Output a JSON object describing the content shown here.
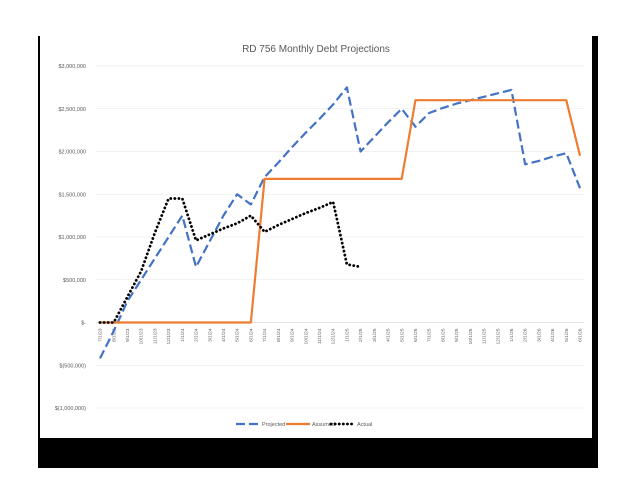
{
  "chart_data": {
    "type": "line",
    "title": "RD 756 Monthly Debt Projections",
    "xlabel": "",
    "ylabel": "",
    "ylim": [
      -1000000,
      3000000
    ],
    "yticks": [
      3000000,
      2500000,
      2000000,
      1500000,
      1000000,
      500000,
      0,
      -500000,
      -1000000
    ],
    "ytick_labels": [
      "$3,000,000",
      "$2,500,000",
      "$2,000,000",
      "$1,500,000",
      "$1,000,000",
      "$500,000",
      "$-",
      "$(500,000)",
      "$(1,000,000)"
    ],
    "grid": true,
    "legend_position": "bottom",
    "categories": [
      "7/1/23",
      "8/1/23",
      "9/1/23",
      "10/1/23",
      "11/1/23",
      "12/1/23",
      "1/1/24",
      "2/1/24",
      "3/1/24",
      "4/1/24",
      "5/1/24",
      "6/1/24",
      "7/1/24",
      "8/1/24",
      "9/1/24",
      "10/1/24",
      "11/1/24",
      "12/1/24",
      "1/1/25",
      "2/1/25",
      "3/1/25",
      "4/1/25",
      "5/1/25",
      "6/1/25",
      "7/1/25",
      "8/1/25",
      "9/1/25",
      "10/1/25",
      "11/1/25",
      "12/1/25",
      "1/1/26",
      "2/1/26",
      "3/1/26",
      "4/1/26",
      "5/1/26",
      "6/1/26"
    ],
    "series": [
      {
        "name": "Projected",
        "color": "#4472C4",
        "style": "dashed",
        "values": [
          -420000,
          -100000,
          250000,
          500000,
          750000,
          1000000,
          1250000,
          650000,
          950000,
          1250000,
          1500000,
          1380000,
          1700000,
          1870000,
          2050000,
          2220000,
          2380000,
          2550000,
          2750000,
          2000000,
          2170000,
          2340000,
          2500000,
          2290000,
          2450000,
          2510000,
          2560000,
          2600000,
          2640000,
          2680000,
          2720000,
          1850000,
          1890000,
          1940000,
          1980000,
          1570000
        ]
      },
      {
        "name": "Assumed",
        "color": "#ED7D31",
        "style": "solid",
        "values": [
          0,
          0,
          0,
          0,
          0,
          0,
          0,
          0,
          0,
          0,
          0,
          0,
          1680000,
          1680000,
          1680000,
          1680000,
          1680000,
          1680000,
          1680000,
          1680000,
          1680000,
          1680000,
          1680000,
          2600000,
          2600000,
          2600000,
          2600000,
          2600000,
          2600000,
          2600000,
          2600000,
          2600000,
          2600000,
          2600000,
          2600000,
          1950000
        ]
      },
      {
        "name": "Actual",
        "color": "#000000",
        "style": "dotted",
        "values": [
          0,
          0,
          300000,
          600000,
          1050000,
          1450000,
          1450000,
          960000,
          1030000,
          1100000,
          1160000,
          1250000,
          1060000,
          1140000,
          1210000,
          1280000,
          1340000,
          1410000,
          680000,
          650000,
          null,
          null,
          null,
          null,
          null,
          null,
          null,
          null,
          null,
          null,
          null,
          null,
          null,
          null,
          null,
          null
        ]
      }
    ]
  }
}
